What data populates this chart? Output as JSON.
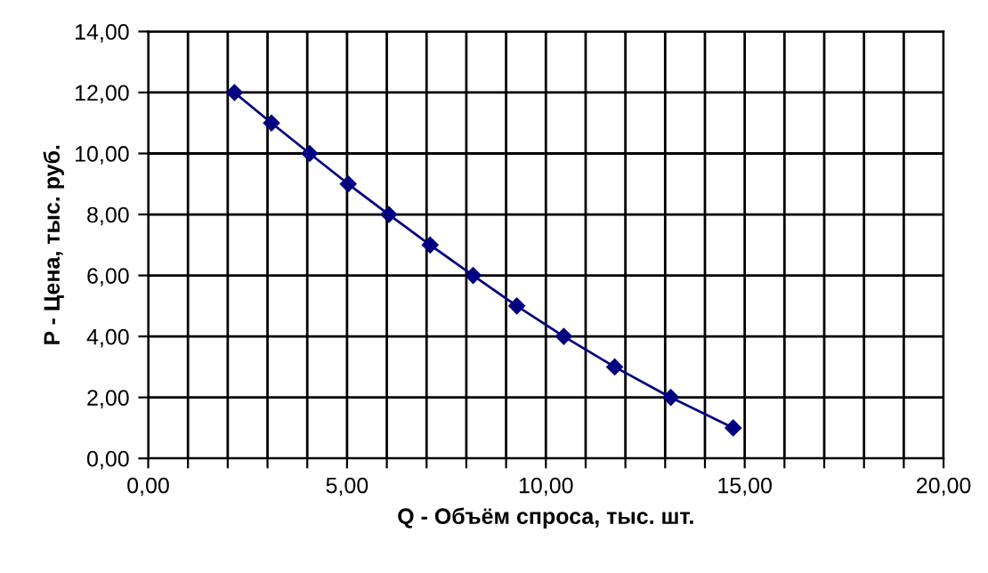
{
  "chart_data": {
    "type": "line",
    "xlabel": "Q - Объём спроса, тыс. шт.",
    "ylabel": "P - Цена, тыс. руб.",
    "x": [
      2.17,
      3.1,
      4.06,
      5.03,
      6.05,
      7.09,
      8.17,
      9.27,
      10.45,
      11.73,
      13.14,
      14.71
    ],
    "series": [
      {
        "color": "#000080",
        "values": [
          12,
          11,
          10,
          9,
          8,
          7,
          6,
          5,
          4,
          3,
          2,
          1
        ]
      }
    ],
    "xlim": [
      0,
      20
    ],
    "xticks": [
      {
        "value": 0,
        "label": "0,00"
      },
      {
        "value": 1,
        "label": null
      },
      {
        "value": 2,
        "label": null
      },
      {
        "value": 3,
        "label": null
      },
      {
        "value": 4,
        "label": null
      },
      {
        "value": 5,
        "label": "5,00"
      },
      {
        "value": 6,
        "label": null
      },
      {
        "value": 7,
        "label": null
      },
      {
        "value": 8,
        "label": null
      },
      {
        "value": 9,
        "label": null
      },
      {
        "value": 10,
        "label": "10,00"
      },
      {
        "value": 11,
        "label": null
      },
      {
        "value": 12,
        "label": null
      },
      {
        "value": 13,
        "label": null
      },
      {
        "value": 14,
        "label": null
      },
      {
        "value": 15,
        "label": "15,00"
      },
      {
        "value": 16,
        "label": null
      },
      {
        "value": 17,
        "label": null
      },
      {
        "value": 18,
        "label": null
      },
      {
        "value": 19,
        "label": null
      },
      {
        "value": 20,
        "label": "20,00"
      }
    ],
    "ylim": [
      0,
      14
    ],
    "yticks": [
      {
        "value": 0,
        "label": "0,00"
      },
      {
        "value": 2,
        "label": "2,00"
      },
      {
        "value": 4,
        "label": "4,00"
      },
      {
        "value": 6,
        "label": "6,00"
      },
      {
        "value": 8,
        "label": "8,00"
      },
      {
        "value": 10,
        "label": "10,00"
      },
      {
        "value": 12,
        "label": "12,00"
      },
      {
        "value": 14,
        "label": "14,00"
      }
    ],
    "grid": true,
    "marker": "diamond",
    "line_style": "solid"
  }
}
